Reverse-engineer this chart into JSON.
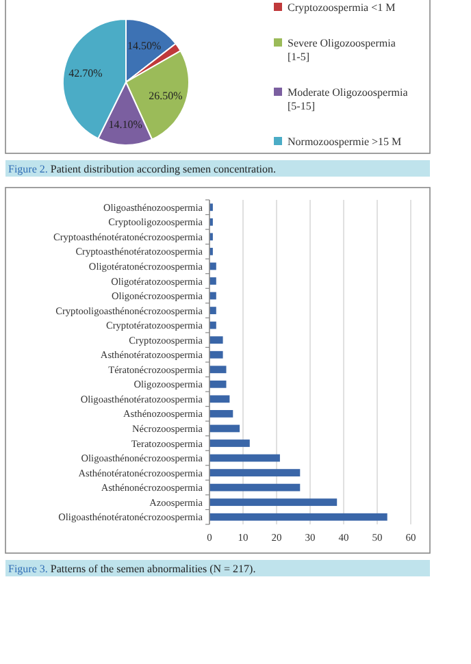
{
  "chart_data": [
    {
      "type": "pie",
      "categories": [
        null,
        "Cryptozoospermia <1 M",
        "Severe Oligozoospermia [1-5]",
        "Moderate Oligozoospermia [5-15]",
        "Normozoospermie >15 M"
      ],
      "values": [
        14.5,
        2.2,
        26.5,
        14.1,
        42.7
      ],
      "value_labels": [
        "14.50%",
        null,
        "26.50%",
        "14.10%",
        "42.70%"
      ],
      "colors": [
        "#3d72b4",
        "#c0393b",
        "#9bbb59",
        "#7b5fa0",
        "#4bacc6"
      ],
      "legend": "right",
      "annotations": [
        "Figure 2. Patient distribution according semen concentration."
      ]
    },
    {
      "type": "bar",
      "orientation": "horizontal",
      "categories": [
        "Oligoasthénozoospermia",
        "Cryptooligozoospermia",
        "Cryptoasthénotératonécrozoospermia",
        "Cryptoasthénotératozoospermia",
        "Oligotératonécrozoospermia",
        "Oligotératozoospermia",
        "Oligonécrozoospermia",
        "Cryptooligoasthénonécrozoospermia",
        "Cryptotératozoospermia",
        "Cryptozoospermia",
        "Asthénotératozoospermia",
        "Tératonécrozoospermia",
        "Oligozoospermia",
        "Oligoasthénotératozoospermia",
        "Asthénozoospermia",
        "Nécrozoospermia",
        "Teratozoospermia",
        "Oligoasthénonécrozoospermia",
        "Asthénotératonécrozoospermia",
        "Asthénonécrozoospermia",
        "Azoospermia",
        "Oligoasthénotératonécrozoospermia"
      ],
      "values": [
        1,
        1,
        1,
        1,
        2,
        2,
        2,
        2,
        2,
        4,
        4,
        5,
        5,
        6,
        7,
        9,
        12,
        21,
        27,
        27,
        38,
        53
      ],
      "color": "#3a66a8",
      "xlim": [
        0,
        60
      ],
      "xticks": [
        0,
        10,
        20,
        30,
        40,
        50,
        60
      ],
      "grid": "x",
      "annotations": [
        "Figure 3. Patterns of the semen abnormalities (N = 217)."
      ]
    }
  ]
}
